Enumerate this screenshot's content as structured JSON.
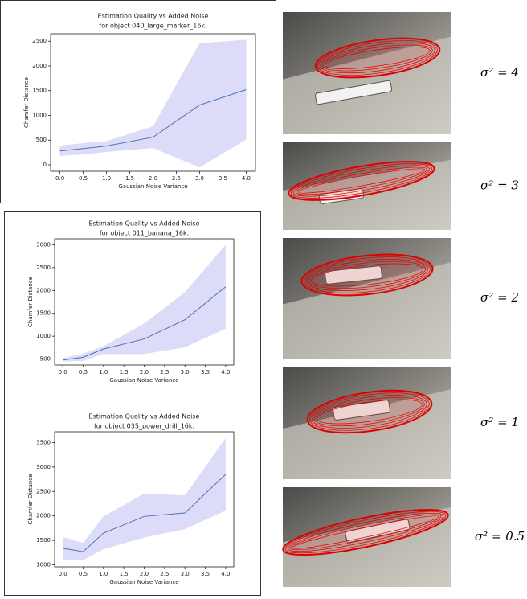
{
  "chart_data": [
    {
      "type": "line",
      "title": "Estimation Quality vs Added Noise",
      "subtitle": "for object 040_large_marker_16k.",
      "x_label": "Gaussian Noise Variance",
      "y_label": "Chamfer Distance",
      "x": [
        0,
        0.5,
        1,
        2,
        3,
        4
      ],
      "series": [
        {
          "color": "#4c72b0",
          "band_color": "#dcdcf8",
          "values": [
            280,
            330,
            380,
            560,
            1210,
            1520
          ],
          "upper": [
            390,
            440,
            480,
            780,
            2460,
            2530
          ],
          "lower": [
            180,
            210,
            260,
            340,
            -50,
            510
          ]
        }
      ],
      "xlim": [
        -0.2,
        4.2
      ],
      "ylim": [
        -130,
        2650
      ],
      "xticks": [
        {
          "value": 0,
          "label": "0.0"
        },
        {
          "value": 0.5,
          "label": "0.5"
        },
        {
          "value": 1,
          "label": "1.0"
        },
        {
          "value": 1.5,
          "label": "1.5"
        },
        {
          "value": 2,
          "label": "2.0"
        },
        {
          "value": 2.5,
          "label": "2.5"
        },
        {
          "value": 3,
          "label": "3.0"
        },
        {
          "value": 3.5,
          "label": "3.5"
        },
        {
          "value": 4,
          "label": "4.0"
        }
      ],
      "yticks": [
        0,
        500,
        1000,
        1500,
        2000,
        2500
      ]
    },
    {
      "type": "line",
      "title": "Estimation Quality vs Added Noise",
      "subtitle": "for object 011_banana_16k.",
      "x_label": "Gaussian Noise Variance",
      "y_label": "Chamfer Distance",
      "x": [
        0,
        0.5,
        1,
        2,
        3,
        4
      ],
      "series": [
        {
          "color": "#4c72b0",
          "band_color": "#dcdcf8",
          "values": [
            480,
            540,
            720,
            940,
            1360,
            2080
          ],
          "upper": [
            520,
            620,
            780,
            1280,
            1960,
            3000
          ],
          "lower": [
            450,
            460,
            610,
            610,
            760,
            1160
          ]
        }
      ],
      "xlim": [
        -0.2,
        4.2
      ],
      "ylim": [
        370,
        3130
      ],
      "xticks": [
        {
          "value": 0,
          "label": "0.0"
        },
        {
          "value": 0.5,
          "label": "0.5"
        },
        {
          "value": 1,
          "label": "1.0"
        },
        {
          "value": 1.5,
          "label": "1.5"
        },
        {
          "value": 2,
          "label": "2.0"
        },
        {
          "value": 2.5,
          "label": "2.5"
        },
        {
          "value": 3,
          "label": "3.0"
        },
        {
          "value": 3.5,
          "label": "3.5"
        },
        {
          "value": 4,
          "label": "4.0"
        }
      ],
      "yticks": [
        500,
        1000,
        1500,
        2000,
        2500,
        3000
      ]
    },
    {
      "type": "line",
      "title": "Estimation Quality vs Added Noise",
      "subtitle": "for object 035_power_drill_16k.",
      "x_label": "Gaussian Noise Variance",
      "y_label": "Chamfer Distance",
      "x": [
        0,
        0.5,
        1,
        2,
        3,
        4
      ],
      "series": [
        {
          "color": "#4c72b0",
          "band_color": "#dcdcf8",
          "values": [
            1340,
            1270,
            1650,
            1990,
            2060,
            2850
          ],
          "upper": [
            1570,
            1450,
            1990,
            2460,
            2420,
            3590
          ],
          "lower": [
            1110,
            1100,
            1320,
            1560,
            1730,
            2110
          ]
        }
      ],
      "xlim": [
        -0.2,
        4.2
      ],
      "ylim": [
        960,
        3720
      ],
      "xticks": [
        {
          "value": 0,
          "label": "0.0"
        },
        {
          "value": 0.5,
          "label": "0.5"
        },
        {
          "value": 1,
          "label": "1.0"
        },
        {
          "value": 1.5,
          "label": "1.5"
        },
        {
          "value": 2,
          "label": "2.0"
        },
        {
          "value": 2.5,
          "label": "2.5"
        },
        {
          "value": 3,
          "label": "3.0"
        },
        {
          "value": 3.5,
          "label": "3.5"
        },
        {
          "value": 4,
          "label": "4.0"
        }
      ],
      "yticks": [
        1000,
        1500,
        2000,
        2500,
        3000,
        3500
      ]
    }
  ],
  "panels": [
    {
      "label": "σ² = 4"
    },
    {
      "label": "σ² = 3"
    },
    {
      "label": "σ² = 2"
    },
    {
      "label": "σ² = 1"
    },
    {
      "label": "σ² = 0.5"
    }
  ]
}
